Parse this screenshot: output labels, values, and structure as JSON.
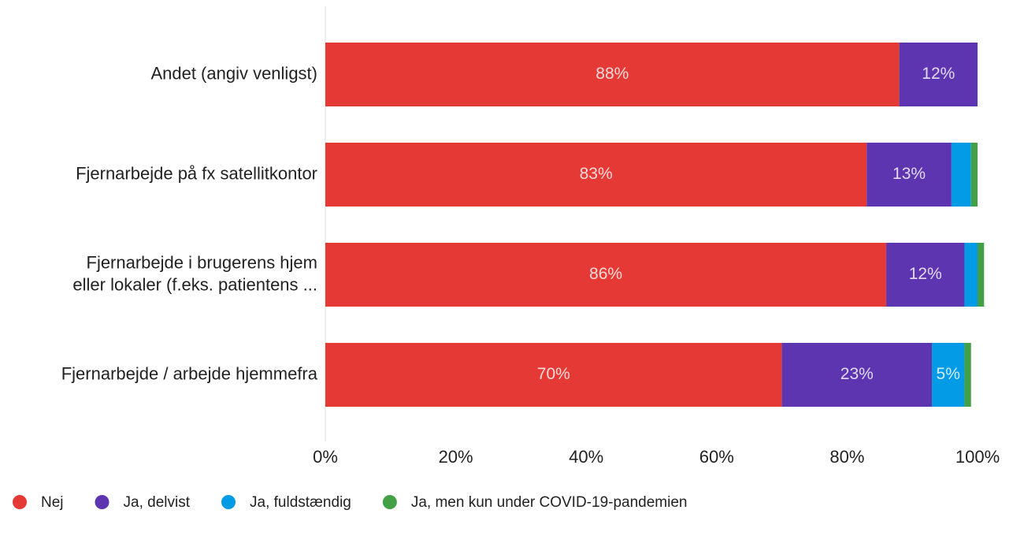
{
  "chart_data": {
    "type": "stacked_barh",
    "categories": [
      "Andet (angiv venligst)",
      "Fjernarbejde på fx satellitkontor",
      "Fjernarbejde i brugerens hjem\neller lokaler (f.eks. patientens ...",
      "Fjernarbejde / arbejde hjemmefra"
    ],
    "series": [
      {
        "name": "Nej",
        "color": "#e53935",
        "values": [
          88,
          83,
          86,
          70
        ],
        "value_labels": [
          "88%",
          "83%",
          "86%",
          "70%"
        ]
      },
      {
        "name": "Ja, delvist",
        "color": "#5e35b1",
        "values": [
          12,
          13,
          12,
          23
        ],
        "value_labels": [
          "12%",
          "13%",
          "12%",
          "23%"
        ]
      },
      {
        "name": "Ja, fuldstændig",
        "color": "#039be5",
        "values": [
          0,
          3,
          2,
          5
        ],
        "value_labels": [
          null,
          null,
          null,
          "5%"
        ]
      },
      {
        "name": "Ja, men kun under COVID-19-pandemien",
        "color": "#43a047",
        "values": [
          0,
          1,
          1,
          1
        ],
        "value_labels": [
          null,
          null,
          null,
          null
        ]
      }
    ],
    "xlim": [
      0,
      100
    ],
    "xticks": [
      {
        "value": 0,
        "label": "0%"
      },
      {
        "value": 20,
        "label": "20%"
      },
      {
        "value": 40,
        "label": "40%"
      },
      {
        "value": 60,
        "label": "60%"
      },
      {
        "value": 80,
        "label": "80%"
      },
      {
        "value": 100,
        "label": "100%"
      }
    ],
    "legend": "bottom-left"
  }
}
